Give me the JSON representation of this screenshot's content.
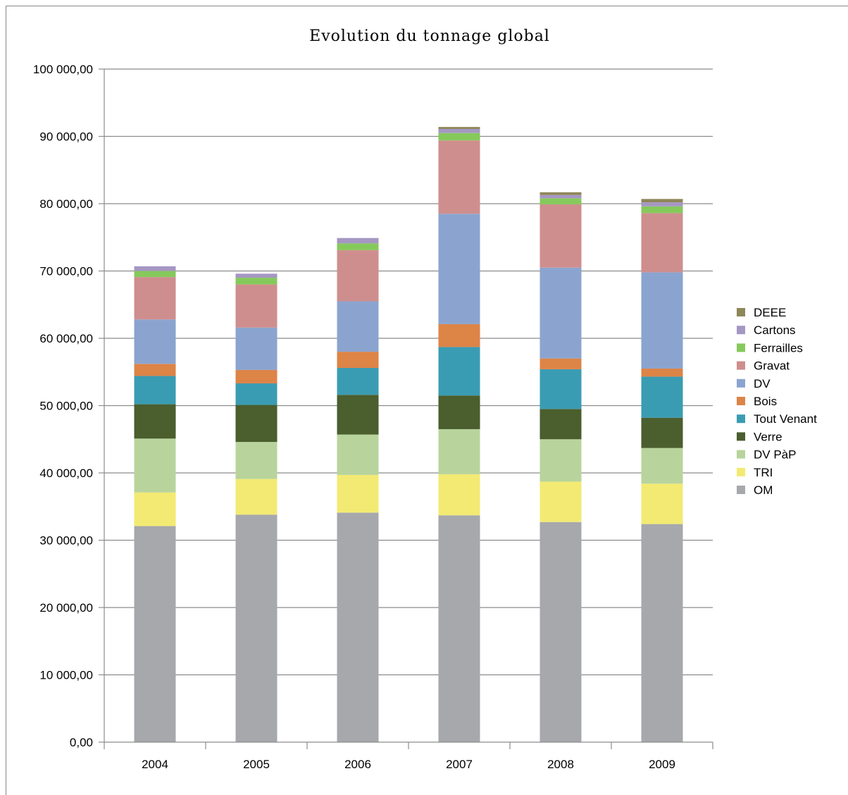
{
  "chart_data": {
    "type": "bar",
    "stacked": true,
    "title": "Evolution du tonnage global",
    "xlabel": "",
    "ylabel": "",
    "categories": [
      "2004",
      "2005",
      "2006",
      "2007",
      "2008",
      "2009"
    ],
    "ylim": [
      0,
      100000
    ],
    "ytick_values": [
      0,
      10000,
      20000,
      30000,
      40000,
      50000,
      60000,
      70000,
      80000,
      90000,
      100000
    ],
    "ytick_labels": [
      "0,00",
      "10 000,00",
      "20 000,00",
      "30 000,00",
      "40 000,00",
      "50 000,00",
      "60 000,00",
      "70 000,00",
      "80 000,00",
      "90 000,00",
      "100 000,00"
    ],
    "grid": "horizontal",
    "legend_position": "right",
    "series": [
      {
        "name": "OM",
        "color": "#a6a8ac",
        "values": [
          32100,
          33800,
          34100,
          33700,
          32700,
          32400
        ]
      },
      {
        "name": "TRI",
        "color": "#f3ea73",
        "values": [
          5000,
          5300,
          5600,
          6100,
          6000,
          6000
        ]
      },
      {
        "name": "DV PàP",
        "color": "#b8d49c",
        "values": [
          8000,
          5500,
          6000,
          6700,
          6300,
          5300
        ]
      },
      {
        "name": "Verre",
        "color": "#4a5e2e",
        "values": [
          5100,
          5500,
          5900,
          5000,
          4500,
          4500
        ]
      },
      {
        "name": "Tout Venant",
        "color": "#3a9cb3",
        "values": [
          4200,
          3200,
          4000,
          7200,
          5900,
          6100
        ]
      },
      {
        "name": "Bois",
        "color": "#dd8447",
        "values": [
          1800,
          2000,
          2400,
          3400,
          1600,
          1200
        ]
      },
      {
        "name": "DV",
        "color": "#8ba4cf",
        "values": [
          6600,
          6300,
          7500,
          16400,
          13500,
          14300
        ]
      },
      {
        "name": "Gravat",
        "color": "#cf8e8e",
        "values": [
          6300,
          6400,
          7600,
          10900,
          9400,
          8800
        ]
      },
      {
        "name": "Ferrailles",
        "color": "#86c95b",
        "values": [
          900,
          1000,
          1000,
          1100,
          900,
          1000
        ]
      },
      {
        "name": "Cartons",
        "color": "#a597c3",
        "values": [
          700,
          600,
          800,
          600,
          500,
          600
        ]
      },
      {
        "name": "DEEE",
        "color": "#8e8759",
        "values": [
          0,
          0,
          0,
          300,
          400,
          500
        ]
      }
    ]
  }
}
